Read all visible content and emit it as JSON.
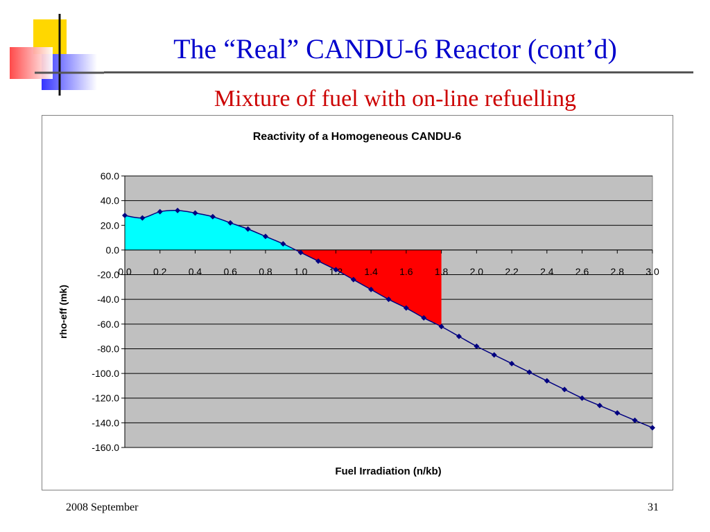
{
  "slide": {
    "title": "The “Real” CANDU-6 Reactor (cont’d)",
    "subtitle": "Mixture of fuel with on-line refuelling",
    "footer_date": "2008 September",
    "page_number": "31"
  },
  "colors": {
    "title": "#0000cc",
    "subtitle": "#cc0000",
    "plot_background": "#c0c0c0",
    "series_line": "#000080",
    "positive_fill": "#00ffff",
    "negative_fill": "#ff0000"
  },
  "chart_data": {
    "type": "scatter",
    "title": "Reactivity of a Homogeneous CANDU-6",
    "xlabel": "Fuel Irradiation (n/kb)",
    "ylabel": "rho-eff (mk)",
    "xlim": [
      0,
      3
    ],
    "ylim": [
      -160,
      60
    ],
    "x_ticks": [
      "0.0",
      "0.2",
      "0.4",
      "0.6",
      "0.8",
      "1.0",
      "1.2",
      "1.4",
      "1.6",
      "1.8",
      "2.0",
      "2.2",
      "2.4",
      "2.6",
      "2.8",
      "3.0"
    ],
    "y_ticks": [
      "60.0",
      "40.0",
      "20.0",
      "0.0",
      "-20.0",
      "-40.0",
      "-60.0",
      "-80.0",
      "-100.0",
      "-120.0",
      "-140.0",
      "-160.0"
    ],
    "grid": "horizontal",
    "series": [
      {
        "marker": "diamond",
        "smooth": true,
        "x": [
          0.0,
          0.1,
          0.2,
          0.3,
          0.4,
          0.5,
          0.6,
          0.7,
          0.8,
          0.9,
          1.0,
          1.1,
          1.2,
          1.3,
          1.4,
          1.5,
          1.6,
          1.7,
          1.8,
          1.9,
          2.0,
          2.1,
          2.2,
          2.3,
          2.4,
          2.5,
          2.6,
          2.7,
          2.8,
          2.9,
          3.0
        ],
        "y": [
          28,
          26,
          31,
          32,
          30,
          27,
          22,
          17,
          11,
          5,
          -2,
          -9,
          -16,
          -24,
          -32,
          -40,
          -47,
          -55,
          -62,
          -70,
          -78,
          -85,
          -92,
          -99,
          -106,
          -113,
          -120,
          -126,
          -132,
          -138,
          -144
        ]
      }
    ],
    "shaded_regions": [
      {
        "from_x": 0.0,
        "to_x": 0.98,
        "fill": "between curve and zero (positive)"
      },
      {
        "from_x": 0.98,
        "to_x": 1.8,
        "fill": "between curve and zero (negative)"
      }
    ]
  }
}
